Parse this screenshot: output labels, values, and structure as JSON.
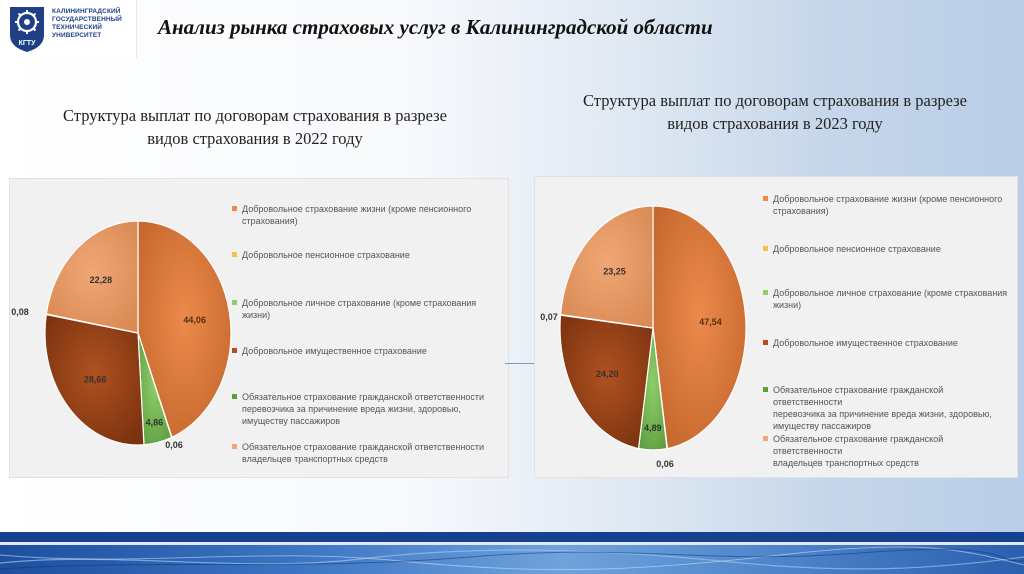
{
  "logo": {
    "emblem_text": "КГТУ",
    "university_name": "КАЛИНИНГРАДСКИЙ\nГОСУДАРСТВЕННЫЙ\nТЕХНИЧЕСКИЙ\nУНИВЕРСИТЕТ"
  },
  "page_title": "Анализ рынка страховых услуг в Калининградской области",
  "subtitles": {
    "y2022": "Структура выплат по договорам страхования в разрезе\nвидов страхования в 2022 году",
    "y2023": "Структура выплат по договорам страхования в разрезе\nвидов страхования в 2023 году"
  },
  "colors": {
    "life": "#ec8a4c",
    "pension": "#f3c14d",
    "personal": "#8fce69",
    "property": "#b0511f",
    "carrier_liability": "#5e9e3a",
    "vehicle_liability": "#f0a775",
    "accent_blue": "#16418e"
  },
  "chart_data": [
    {
      "type": "pie",
      "title": "",
      "start_angle_deg": 0,
      "legend_position": "right",
      "categories": [
        "Добровольное страхование жизни (кроме пенсионного страхования)",
        "Добровольное пенсионное страхование",
        "Добровольное личное страхование (кроме страхования жизни)",
        "Добровольное имущественное страхование",
        "Обязательное страхование гражданской ответственности перевозчика за причинение вреда жизни, здоровью, имуществу пассажиров",
        "Обязательное страхование гражданской ответственности владельцев транспортных средств"
      ],
      "values": [
        44.06,
        0.06,
        4.86,
        28.66,
        0.08,
        22.28
      ],
      "data_labels": [
        "44,06",
        "0,06",
        "4,86",
        "28,66",
        "0,08",
        "22,28"
      ],
      "label_outside": [
        false,
        true,
        false,
        false,
        true,
        false
      ]
    },
    {
      "type": "pie",
      "title": "",
      "start_angle_deg": 0,
      "legend_position": "right",
      "categories": [
        "Добровольное страхование жизни (кроме пенсионного страхования)",
        "Добровольное пенсионное страхование",
        "Добровольное личное страхование (кроме страхования жизни)",
        "Добровольное имущественное страхование",
        "Обязательное страхование гражданской ответственности перевозчика за причинение вреда жизни, здоровью, имуществу пассажиров",
        "Обязательное страхование гражданской ответственности владельцев транспортных средств"
      ],
      "values": [
        47.54,
        0.06,
        4.89,
        24.2,
        0.07,
        23.25
      ],
      "data_labels": [
        "47,54",
        "0,06",
        "4,89",
        "24,20",
        "0,07",
        "23,25"
      ],
      "label_outside": [
        false,
        true,
        false,
        false,
        true,
        false
      ]
    }
  ],
  "legend_items_2022": [
    "Добровольное страхование жизни (кроме пенсионного\nстрахования)",
    "Добровольное пенсионное страхование",
    "Добровольное личное страхование (кроме страхования\nжизни)",
    "Добровольное имущественное страхование",
    "Обязательное страхование гражданской ответственности\nперевозчика за причинение вреда жизни, здоровью,\nимуществу пассажиров",
    "Обязательное страхование гражданской ответственности\nвладельцев транспортных средств"
  ],
  "legend_items_2023": [
    "Добровольное страхование жизни (кроме пенсионного\nстрахования)",
    "Добровольное пенсионное страхование",
    "Добровольное личное страхование (кроме страхования\nжизни)",
    "Добровольное имущественное страхование",
    "Обязательное страхование гражданской ответственности\nперевозчика за причинение вреда жизни, здоровью,\nимуществу пассажиров",
    "Обязательное страхование гражданской ответственности\nвладельцев транспортных средств"
  ]
}
